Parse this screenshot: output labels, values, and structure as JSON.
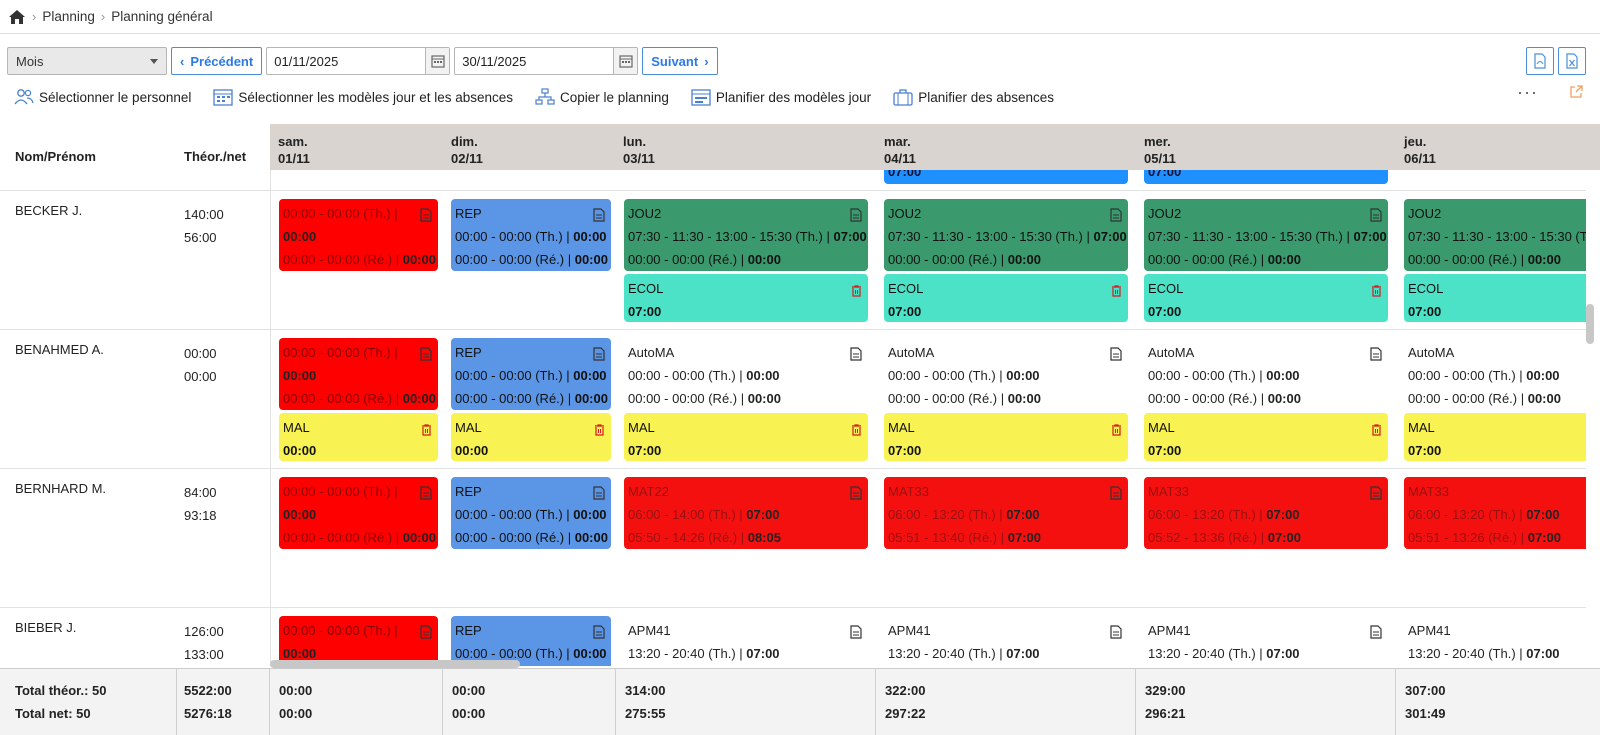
{
  "breadcrumb": {
    "items": [
      "Planning",
      "Planning général"
    ]
  },
  "toolbar": {
    "period_select": "Mois",
    "prev_label": "Précédent",
    "date_from": "01/11/2025",
    "date_to": "30/11/2025",
    "next_label": "Suivant"
  },
  "actions": [
    "Sélectionner le personnel",
    "Sélectionner les modèles jour et les absences",
    "Copier le planning",
    "Planifier des modèles jour",
    "Planifier des absences"
  ],
  "more_label": "···",
  "columns": {
    "name": "Nom/Prénom",
    "theor": "Théor./net"
  },
  "days": [
    {
      "dow": "sam.",
      "date": "01/11"
    },
    {
      "dow": "dim.",
      "date": "02/11"
    },
    {
      "dow": "lun.",
      "date": "03/11"
    },
    {
      "dow": "mar.",
      "date": "04/11"
    },
    {
      "dow": "mer.",
      "date": "05/11"
    },
    {
      "dow": "jeu.",
      "date": "06/11"
    }
  ],
  "top_partial": [
    "07:00",
    "07:00"
  ],
  "rows": [
    {
      "name": "BECKER J.",
      "theor": "140:00",
      "net": "56:00",
      "cards": [
        {
          "l1": "00:00 - 00:00 (Th.) |",
          "l2": "00:00",
          "l3": "00:00 - 00:00 (Ré.) | ",
          "l3b": "00:00"
        },
        {
          "code": "REP",
          "l2": "00:00 - 00:00 (Th.) | ",
          "l2b": "00:00",
          "l3": "00:00 - 00:00 (Ré.) | ",
          "l3b": "00:00"
        },
        {
          "code": "JOU2",
          "l2": "07:30 - 11:30 - 13:00 - 15:30 (Th.) | ",
          "l2b": "07:00",
          "l3": "00:00 - 00:00 (Ré.) | ",
          "l3b": "00:00",
          "abs": "ECOL",
          "absv": "07:00"
        },
        {
          "code": "JOU2",
          "l2": "07:30 - 11:30 - 13:00 - 15:30 (Th.) | ",
          "l2b": "07:00",
          "l3": "00:00 - 00:00 (Ré.) | ",
          "l3b": "00:00",
          "abs": "ECOL",
          "absv": "07:00"
        },
        {
          "code": "JOU2",
          "l2": "07:30 - 11:30 - 13:00 - 15:30 (Th.) | ",
          "l2b": "07:00",
          "l3": "00:00 - 00:00 (Ré.) | ",
          "l3b": "00:00",
          "abs": "ECOL",
          "absv": "07:00"
        },
        {
          "code": "JOU2",
          "l2": "07:30 - 11:30 - 13:00 - 15:30 (Th",
          "l3": "00:00 - 00:00 (Ré.) | ",
          "l3b": "00:00",
          "abs": "ECOL",
          "absv": "07:00"
        }
      ]
    },
    {
      "name": "BENAHMED A.",
      "theor": "00:00",
      "net": "00:00",
      "cards": [
        {
          "l1": "00:00 - 00:00 (Th.) |",
          "l2": "00:00",
          "l3": "00:00 - 00:00 (Ré.) | ",
          "l3b": "00:00",
          "abs": "MAL",
          "absv": "00:00"
        },
        {
          "code": "REP",
          "l2": "00:00 - 00:00 (Th.) | ",
          "l2b": "00:00",
          "l3": "00:00 - 00:00 (Ré.) | ",
          "l3b": "00:00",
          "abs": "MAL",
          "absv": "00:00"
        },
        {
          "code": "AutoMA",
          "l2": "00:00 - 00:00 (Th.) | ",
          "l2b": "00:00",
          "l3": "00:00 - 00:00 (Ré.) | ",
          "l3b": "00:00",
          "abs": "MAL",
          "absv": "07:00"
        },
        {
          "code": "AutoMA",
          "l2": "00:00 - 00:00 (Th.) | ",
          "l2b": "00:00",
          "l3": "00:00 - 00:00 (Ré.) | ",
          "l3b": "00:00",
          "abs": "MAL",
          "absv": "07:00"
        },
        {
          "code": "AutoMA",
          "l2": "00:00 - 00:00 (Th.) | ",
          "l2b": "00:00",
          "l3": "00:00 - 00:00 (Ré.) | ",
          "l3b": "00:00",
          "abs": "MAL",
          "absv": "07:00"
        },
        {
          "code": "AutoMA",
          "l2": "00:00 - 00:00 (Th.) | ",
          "l2b": "00:00",
          "l3": "00:00 - 00:00 (Ré.) | ",
          "l3b": "00:00",
          "abs": "MAL",
          "absv": "07:00"
        }
      ]
    },
    {
      "name": "BERNHARD M.",
      "theor": "84:00",
      "net": "93:18",
      "cards": [
        {
          "l1": "00:00 - 00:00 (Th.) |",
          "l2": "00:00",
          "l3": "00:00 - 00:00 (Ré.) | ",
          "l3b": "00:00"
        },
        {
          "code": "REP",
          "l2": "00:00 - 00:00 (Th.) | ",
          "l2b": "00:00",
          "l3": "00:00 - 00:00 (Ré.) | ",
          "l3b": "00:00"
        },
        {
          "code": "MAT22",
          "l2": "06:00 - 14:00 (Th.) | ",
          "l2b": "07:00",
          "l3": "05:50 - 14:26 (Ré.) | ",
          "l3b": "08:05"
        },
        {
          "code": "MAT33",
          "l2": "06:00 - 13:20 (Th.) | ",
          "l2b": "07:00",
          "l3": "05:51 - 13:40 (Ré.) | ",
          "l3b": "07:00"
        },
        {
          "code": "MAT33",
          "l2": "06:00 - 13:20 (Th.) | ",
          "l2b": "07:00",
          "l3": "05:52 - 13:36 (Ré.) | ",
          "l3b": "07:00"
        },
        {
          "code": "MAT33",
          "l2": "06:00 - 13:20 (Th.) | ",
          "l2b": "07:00",
          "l3": "05:51 - 13:26 (Ré.) | ",
          "l3b": "07:00"
        }
      ]
    },
    {
      "name": "BIEBER J.",
      "theor": "126:00",
      "net": "133:00",
      "cards": [
        {
          "l1": "00:00 - 00:00 (Th.) |",
          "l2": "00:00"
        },
        {
          "code": "REP",
          "l2": "00:00 - 00:00 (Th.) | ",
          "l2b": "00:00"
        },
        {
          "code": "APM41",
          "l2": "13:20 - 20:40 (Th.) | ",
          "l2b": "07:00"
        },
        {
          "code": "APM41",
          "l2": "13:20 - 20:40 (Th.) | ",
          "l2b": "07:00"
        },
        {
          "code": "APM41",
          "l2": "13:20 - 20:40 (Th.) | ",
          "l2b": "07:00"
        },
        {
          "code": "APM41",
          "l2": "13:20 - 20:40 (Th.) | ",
          "l2b": "07:00"
        }
      ]
    }
  ],
  "totals": {
    "label_theor": "Total théor.: 50",
    "label_net": "Total net: 50",
    "sum_theor": "5522:00",
    "sum_net": "5276:18",
    "days": [
      {
        "theor": "00:00",
        "net": "00:00"
      },
      {
        "theor": "00:00",
        "net": "00:00"
      },
      {
        "theor": "314:00",
        "net": "275:55"
      },
      {
        "theor": "322:00",
        "net": "297:22"
      },
      {
        "theor": "329:00",
        "net": "296:21"
      },
      {
        "theor": "307:00",
        "net": "301:49"
      }
    ]
  }
}
